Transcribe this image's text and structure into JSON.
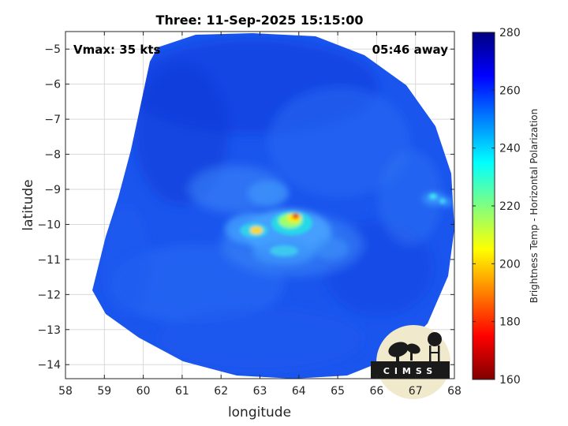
{
  "chart_data": {
    "type": "heatmap",
    "title": "Three: 11-Sep-2025 15:15:00",
    "xlabel": "longitude",
    "ylabel": "latitude",
    "xlim": [
      58,
      68
    ],
    "ylim": [
      -14.4,
      -4.5
    ],
    "x_ticks": [
      58,
      59,
      60,
      61,
      62,
      63,
      64,
      65,
      66,
      67,
      68
    ],
    "y_ticks": [
      -5,
      -6,
      -7,
      -8,
      -9,
      -10,
      -11,
      -12,
      -13,
      -14
    ],
    "grid": true,
    "annotations": {
      "vmax": "Vmax: 35 kts",
      "time_away": "05:46 away"
    },
    "colorbar": {
      "label": "Brightness Temp - Horizontal Polarization",
      "min": 160,
      "max": 280,
      "ticks": [
        160,
        180,
        200,
        220,
        240,
        260,
        280
      ],
      "colormap": [
        "#800000",
        "#ff0000",
        "#ff8000",
        "#ffff00",
        "#80ff80",
        "#00ffff",
        "#0080ff",
        "#0000ff",
        "#000080"
      ]
    },
    "swath_background_value": 258,
    "features": [
      {
        "lon": 63.85,
        "lat": -9.72,
        "value": 178
      },
      {
        "lon": 63.75,
        "lat": -9.85,
        "value": 215
      },
      {
        "lon": 62.85,
        "lat": -10.15,
        "value": 212
      },
      {
        "lon": 63.3,
        "lat": -10.55,
        "value": 235
      },
      {
        "lon": 62.4,
        "lat": -10.1,
        "value": 240
      },
      {
        "lon": 63.1,
        "lat": -9.2,
        "value": 245
      },
      {
        "lon": 67.3,
        "lat": -9.3,
        "value": 235
      },
      {
        "lon": 67.8,
        "lat": -9.4,
        "value": 240
      },
      {
        "lon": 64.4,
        "lat": -10.6,
        "value": 245
      }
    ]
  },
  "logo": {
    "text": "CIMSS"
  }
}
